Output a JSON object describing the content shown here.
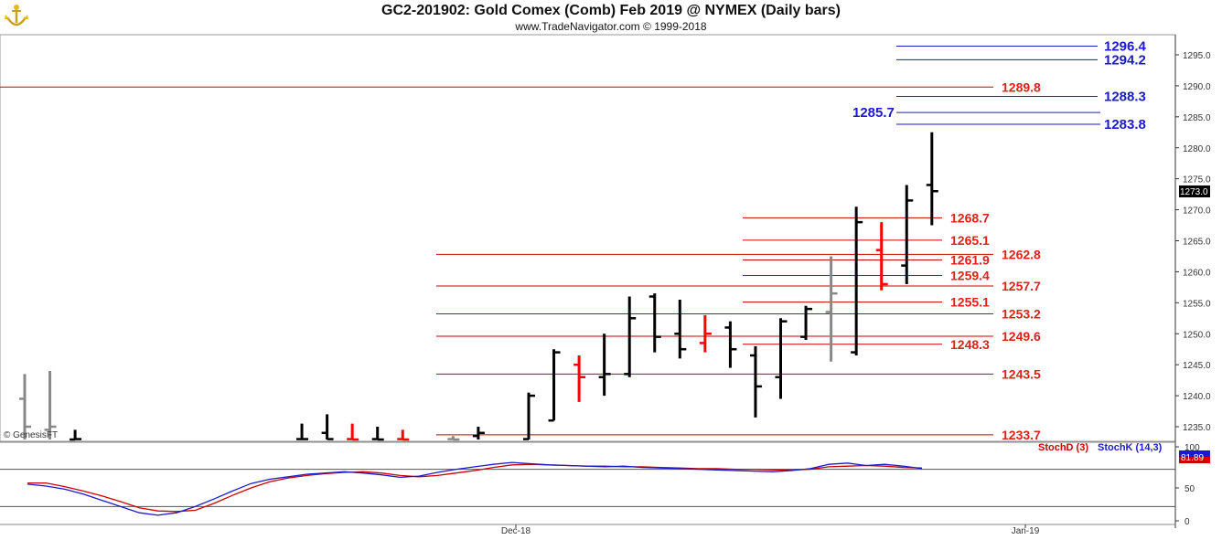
{
  "header": {
    "title": "GC2-201902:  Gold Comex (Comb) Feb 2019 @ NYMEX  (Daily bars)",
    "subtitle": "www.TradeNavigator.com © 1999-2018"
  },
  "copyright_label": "© GenesisFT",
  "price_tag": "1273.0",
  "colors": {
    "bar": "#000000",
    "bar_up": "#ff0000",
    "bar_green": "#22cc22",
    "bar_gray": "#888888",
    "support_line": "#cc0000",
    "resistance_line": "#1a1ad0",
    "stoch_d": "#cc0000",
    "stoch_k": "#1a1ad0"
  },
  "chart_data": [
    {
      "type": "bar",
      "subtype": "ohlc",
      "title": "GC2-201902:  Gold Comex (Comb) Feb 2019 @ NYMEX  (Daily bars)",
      "y_axis_side": "right",
      "ylim": [
        1232,
        1298
      ],
      "y_ticks": [
        "1235.0",
        "1240.0",
        "1245.0",
        "1250.0",
        "1255.0",
        "1260.0",
        "1265.0",
        "1270.0",
        "1275.0",
        "1280.0",
        "1285.0",
        "1290.0",
        "1295.0"
      ],
      "bars": [
        {
          "i": 0,
          "o": 1239.5,
          "h": 1243.5,
          "l": 1231.5,
          "c": 1235.0,
          "color": "gray"
        },
        {
          "i": 1,
          "o": 1234.5,
          "h": 1244.0,
          "l": 1231.5,
          "c": 1235.0,
          "color": "gray"
        },
        {
          "i": 2,
          "o": 1232.5,
          "h": 1234.5,
          "l": 1231.5,
          "c": 1233.0,
          "color": "black"
        },
        {
          "i": 11,
          "o": 1233.0,
          "h": 1235.5,
          "l": 1231.5,
          "c": 1233.0,
          "color": "black"
        },
        {
          "i": 12,
          "o": 1234.0,
          "h": 1237.0,
          "l": 1231.5,
          "c": 1233.0,
          "color": "black"
        },
        {
          "i": 13,
          "o": 1233.0,
          "h": 1235.5,
          "l": 1231.5,
          "c": 1232.5,
          "color": "red"
        },
        {
          "i": 14,
          "o": 1233.0,
          "h": 1235.0,
          "l": 1231.5,
          "c": 1232.5,
          "color": "black"
        },
        {
          "i": 15,
          "o": 1233.0,
          "h": 1234.5,
          "l": 1231.5,
          "c": 1232.5,
          "color": "red"
        },
        {
          "i": 17,
          "o": 1233.0,
          "h": 1233.5,
          "l": 1231.5,
          "c": 1232.5,
          "color": "gray"
        },
        {
          "i": 18,
          "o": 1233.5,
          "h": 1235.0,
          "l": 1232.0,
          "c": 1234.0,
          "color": "black"
        },
        {
          "i": 20,
          "o": 1233.0,
          "h": 1240.5,
          "l": 1232.5,
          "c": 1240.0,
          "color": "black"
        },
        {
          "i": 21,
          "o": 1236.0,
          "h": 1247.5,
          "l": 1236.0,
          "c": 1247.0,
          "color": "black"
        },
        {
          "i": 22,
          "o": 1245.0,
          "h": 1246.5,
          "l": 1239.0,
          "c": 1243.0,
          "color": "red"
        },
        {
          "i": 23,
          "o": 1243.0,
          "h": 1250.0,
          "l": 1240.0,
          "c": 1243.5,
          "color": "black"
        },
        {
          "i": 24,
          "o": 1243.5,
          "h": 1256.0,
          "l": 1243.0,
          "c": 1252.5,
          "color": "black"
        },
        {
          "i": 25,
          "o": 1256.0,
          "h": 1256.5,
          "l": 1247.0,
          "c": 1249.5,
          "color": "black"
        },
        {
          "i": 26,
          "o": 1250.0,
          "h": 1255.5,
          "l": 1246.0,
          "c": 1247.5,
          "color": "black"
        },
        {
          "i": 27,
          "o": 1248.5,
          "h": 1253.0,
          "l": 1247.0,
          "c": 1250.0,
          "color": "red"
        },
        {
          "i": 28,
          "o": 1251.0,
          "h": 1252.0,
          "l": 1244.5,
          "c": 1247.5,
          "color": "black"
        },
        {
          "i": 29,
          "o": 1246.5,
          "h": 1248.0,
          "l": 1236.5,
          "c": 1241.5,
          "color": "black"
        },
        {
          "i": 30,
          "o": 1243.0,
          "h": 1252.5,
          "l": 1239.5,
          "c": 1252.0,
          "color": "black"
        },
        {
          "i": 31,
          "o": 1249.5,
          "h": 1254.5,
          "l": 1249.0,
          "c": 1254.0,
          "color": "black"
        },
        {
          "i": 32,
          "o": 1253.5,
          "h": 1262.5,
          "l": 1245.5,
          "c": 1256.5,
          "color": "gray"
        },
        {
          "i": 33,
          "o": 1247.0,
          "h": 1270.5,
          "l": 1246.5,
          "c": 1268.0,
          "color": "black"
        },
        {
          "i": 34,
          "o": 1263.5,
          "h": 1268.0,
          "l": 1257.0,
          "c": 1258.0,
          "color": "red"
        },
        {
          "i": 35,
          "o": 1261.0,
          "h": 1274.0,
          "l": 1258.0,
          "c": 1271.5,
          "color": "black"
        },
        {
          "i": 36,
          "o": 1274.0,
          "h": 1282.5,
          "l": 1267.5,
          "c": 1273.0,
          "color": "black"
        }
      ],
      "levels": [
        {
          "value": 1296.4,
          "label": "1296.4",
          "color": "blue"
        },
        {
          "value": 1294.2,
          "label": "1294.2",
          "color": "blue"
        },
        {
          "value": 1289.8,
          "label": "1289.8",
          "color": "red"
        },
        {
          "value": 1288.3,
          "label": "1288.3",
          "color": "blue"
        },
        {
          "value": 1285.7,
          "label": "1285.7",
          "color": "blue"
        },
        {
          "value": 1283.8,
          "label": "1283.8",
          "color": "blue"
        },
        {
          "value": 1268.7,
          "label": "1268.7",
          "color": "red"
        },
        {
          "value": 1265.1,
          "label": "1265.1",
          "color": "red"
        },
        {
          "value": 1262.8,
          "label": "1262.8",
          "color": "red"
        },
        {
          "value": 1261.9,
          "label": "1261.9",
          "color": "red"
        },
        {
          "value": 1259.4,
          "label": "1259.4",
          "color": "red"
        },
        {
          "value": 1257.7,
          "label": "1257.7",
          "color": "red"
        },
        {
          "value": 1255.1,
          "label": "1255.1",
          "color": "red"
        },
        {
          "value": 1253.2,
          "label": "1253.2",
          "color": "red"
        },
        {
          "value": 1249.6,
          "label": "1249.6",
          "color": "red"
        },
        {
          "value": 1248.3,
          "label": "1248.3",
          "color": "red"
        },
        {
          "value": 1243.5,
          "label": "1243.5",
          "color": "red"
        },
        {
          "value": 1233.7,
          "label": "1233.7",
          "color": "red"
        }
      ],
      "last_price": 1273.0
    },
    {
      "type": "line",
      "ylim": [
        0,
        100
      ],
      "y_ticks": [
        "0",
        "50",
        "100"
      ],
      "guide_levels": [
        20,
        80
      ],
      "last_value_label": "81.89",
      "x_labels": [
        "Dec-18",
        "Jan-19"
      ],
      "series": [
        {
          "name": "StochD (3)",
          "color": "red",
          "values": [
            58,
            58,
            52,
            45,
            37,
            28,
            18,
            13,
            12,
            14,
            25,
            38,
            50,
            60,
            66,
            70,
            73,
            75,
            76,
            74,
            70,
            68,
            70,
            74,
            78,
            83,
            87,
            88,
            87,
            86,
            85,
            85,
            84,
            84,
            83,
            82,
            81,
            81,
            80,
            80,
            79,
            79,
            80,
            84,
            85,
            86,
            85,
            83,
            82
          ]
        },
        {
          "name": "StochK (14,3)",
          "color": "blue",
          "values": [
            56,
            53,
            48,
            40,
            30,
            20,
            10,
            6,
            10,
            20,
            32,
            45,
            57,
            64,
            68,
            72,
            74,
            76,
            74,
            71,
            67,
            69,
            75,
            80,
            84,
            88,
            91,
            89,
            87,
            86,
            85,
            84,
            85,
            83,
            82,
            81,
            80,
            79,
            78,
            77,
            76,
            78,
            81,
            88,
            90,
            86,
            88,
            85,
            81
          ]
        }
      ]
    }
  ]
}
